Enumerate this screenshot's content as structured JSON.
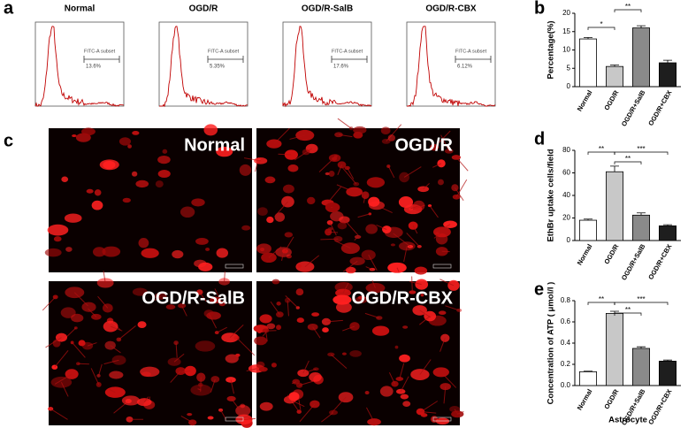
{
  "panel_labels": [
    "a",
    "b",
    "c",
    "d",
    "e"
  ],
  "flow_cytometry": [
    {
      "title": "Normal",
      "gate_label": "FITC-A subset",
      "percent": "13.6%"
    },
    {
      "title": "OGD/R",
      "gate_label": "FITC-A subset",
      "percent": "5.35%"
    },
    {
      "title": "OGD/R-SalB",
      "gate_label": "FITC-A subset",
      "percent": "17.6%"
    },
    {
      "title": "OGD/R-CBX",
      "gate_label": "FITC-A subset",
      "percent": "6.12%"
    }
  ],
  "micrographs": [
    "Normal",
    "OGD/R",
    "OGD/R-SalB",
    "OGD/R-CBX"
  ],
  "chart_data": [
    {
      "type": "bar",
      "y_label": "Percentage(%)",
      "categories": [
        "Normal",
        "OGD/R",
        "OGD/R+SalB",
        "OGD/R+CBX"
      ],
      "values": [
        13,
        5.5,
        16,
        6.5
      ],
      "errors": [
        0.4,
        0.4,
        0.6,
        0.7
      ],
      "colors": [
        "#ffffff",
        "#c8c8c8",
        "#8a8a8a",
        "#1e1e1e"
      ],
      "ylim": [
        0,
        20
      ],
      "yticks": [
        0,
        5,
        10,
        15,
        20
      ],
      "annotations": [
        "*",
        "**"
      ]
    },
    {
      "type": "bar",
      "y_label": "EthBr uptake cells/field",
      "categories": [
        "Normal",
        "OGD/R",
        "OGD/R+SalB",
        "OGD/R+CBX"
      ],
      "values": [
        18,
        61,
        22.5,
        13
      ],
      "errors": [
        1,
        5,
        2,
        1
      ],
      "colors": [
        "#ffffff",
        "#c8c8c8",
        "#8a8a8a",
        "#1e1e1e"
      ],
      "ylim": [
        0,
        80
      ],
      "yticks": [
        0,
        20,
        40,
        60,
        80
      ],
      "annotations": [
        "**",
        "**",
        "***"
      ]
    },
    {
      "type": "bar",
      "y_label": "Concentration of ATP ( μmol/l )",
      "x_label": "Astrocyte",
      "categories": [
        "Normal",
        "OGD/R",
        "OGD/R+SalB",
        "OGD/R+CBX"
      ],
      "values": [
        0.13,
        0.68,
        0.35,
        0.23
      ],
      "errors": [
        0.005,
        0.02,
        0.015,
        0.01
      ],
      "colors": [
        "#ffffff",
        "#c8c8c8",
        "#8a8a8a",
        "#1e1e1e"
      ],
      "ylim": [
        0,
        0.8
      ],
      "yticks": [
        {
          "value": 0,
          "label": "0.0"
        },
        {
          "value": 0.2,
          "label": "0.2"
        },
        {
          "value": 0.4,
          "label": "0.4"
        },
        {
          "value": 0.6,
          "label": "0.6"
        },
        {
          "value": 0.8,
          "label": "0.8"
        }
      ],
      "annotations": [
        "**",
        "**",
        "***"
      ]
    }
  ]
}
